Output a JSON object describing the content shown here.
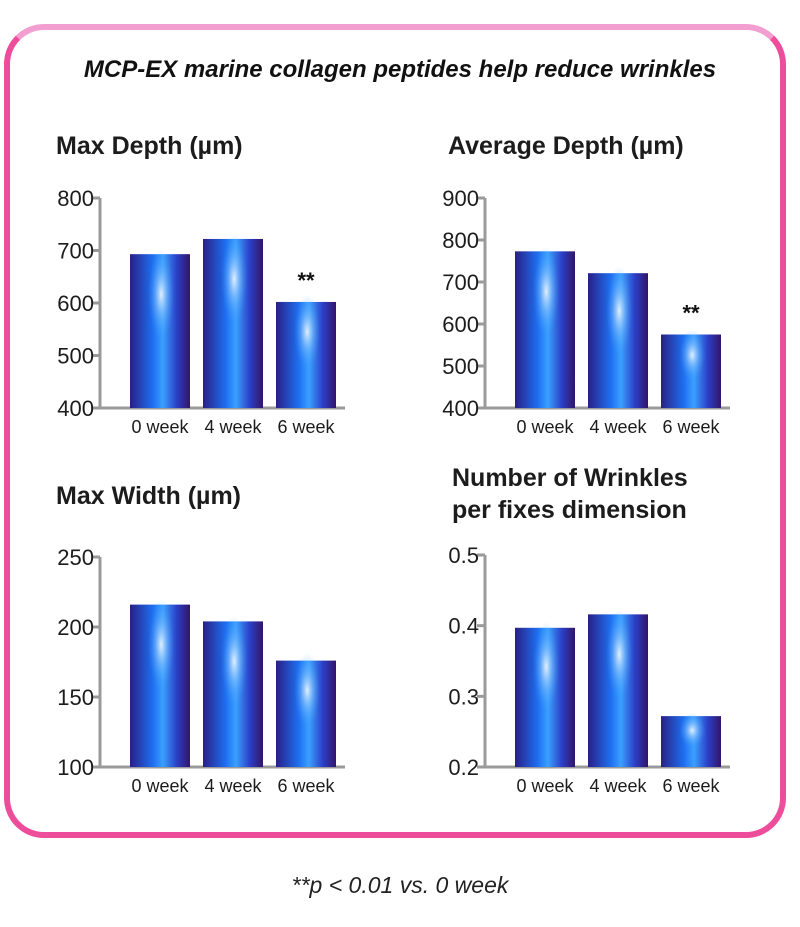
{
  "title": "MCP-EX marine collagen peptides help reduce wrinkles",
  "footnote": "**p < 0.01 vs. 0 week",
  "colors": {
    "frame": "#ee4d9b",
    "bar_edge": "#2a1a7a",
    "bar_center": "#2f8cff",
    "bar_highlight": "#cfe6ff",
    "axis": "#9a9a9a"
  },
  "chart_data": [
    {
      "type": "bar",
      "title": "Max Depth (µm)",
      "categories": [
        "0 week",
        "4 week",
        "6 week"
      ],
      "values": [
        693,
        722,
        602
      ],
      "ylim": [
        400,
        800
      ],
      "yticks": [
        400,
        500,
        600,
        700,
        800
      ],
      "annotations": [
        "",
        "",
        "**"
      ],
      "grid": false
    },
    {
      "type": "bar",
      "title": "Average Depth (µm)",
      "categories": [
        "0 week",
        "4 week",
        "6 week"
      ],
      "values": [
        773,
        721,
        575
      ],
      "ylim": [
        400,
        900
      ],
      "yticks": [
        400,
        500,
        600,
        700,
        800,
        900
      ],
      "annotations": [
        "",
        "",
        "**"
      ],
      "grid": false
    },
    {
      "type": "bar",
      "title": "Max Width (µm)",
      "categories": [
        "0 week",
        "4 week",
        "6 week"
      ],
      "values": [
        216,
        204,
        176
      ],
      "ylim": [
        100,
        250
      ],
      "yticks": [
        100,
        150,
        200,
        250
      ],
      "annotations": [
        "",
        "",
        ""
      ],
      "grid": false
    },
    {
      "type": "bar",
      "title": "Number of Wrinkles per fixes dimension",
      "title_lines": [
        "Number of Wrinkles",
        "per fixes dimension"
      ],
      "categories": [
        "0 week",
        "4 week",
        "6 week"
      ],
      "values": [
        0.397,
        0.416,
        0.272
      ],
      "ylim": [
        0.2,
        0.5
      ],
      "yticks": [
        0.2,
        0.3,
        0.4,
        0.5
      ],
      "annotations": [
        "",
        "",
        ""
      ],
      "grid": false
    }
  ]
}
